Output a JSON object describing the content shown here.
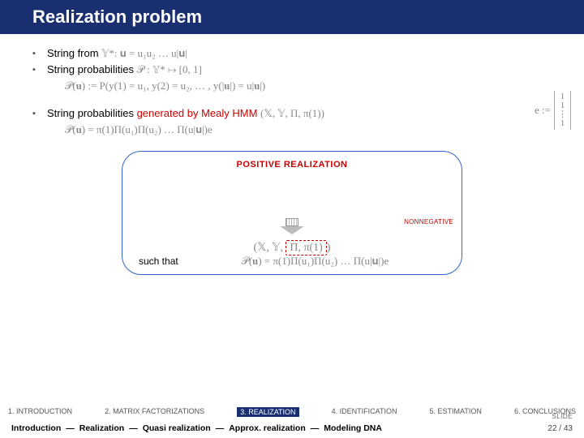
{
  "title": "Realization problem",
  "bullets": {
    "b1_pre": "String from ",
    "b1_math": "𝕐*:  𝐮 = u₁u₂ … u|𝐮|",
    "b2_pre": "String probabilities ",
    "b2_math": "𝒫 : 𝕐* ↦ [0, 1]",
    "b3_pre": "String probabilities ",
    "b3_red": "generated by Mealy HMM",
    "b3_math": "  (𝕏, 𝕐, Π, π(1))",
    "b3_eq": "𝒫(𝐮) := P(y(1) = u₁, y(2) = u₂, … , y(|𝐮|) = u|𝐮|)",
    "b4_eq": "𝒫(𝐮) = π(1)Π(u₁)Π(u₂) … Π(u|𝐮|)e"
  },
  "e_def": {
    "lhs": "e :=",
    "entries": [
      "1",
      "1",
      "⋮",
      "1"
    ]
  },
  "box": {
    "title": "POSITIVE REALIZATION",
    "tuple_left": "(𝕏, 𝕐, ",
    "tuple_box": "Π, π(1)",
    "tuple_right": ")",
    "nonneg": "NONNEGATIVE",
    "suchthat": "such that",
    "eq": "𝒫(𝐮)   =   π(1)Π(u₁)Π(u₂) … Π(u|𝐮|)e"
  },
  "nav1": {
    "items": [
      "1. INTRODUCTION",
      "2. MATRIX FACTORIZATIONS",
      "3. REALIZATION",
      "4. IDENTIFICATION",
      "5. ESTIMATION",
      "6. CONCLUSIONS"
    ],
    "active_index": 2
  },
  "nav2": {
    "items": [
      "Introduction",
      "Realization",
      "Quasi realization",
      "Approx. realization",
      "Modeling DNA"
    ],
    "sep": "—"
  },
  "slide_label": "SLIDE",
  "page": "22 / 43",
  "colors": {
    "title_bg": "#1a2f6f",
    "accent_red": "#cc0000",
    "math_gray": "#888888",
    "box_border": "#3366cc"
  }
}
